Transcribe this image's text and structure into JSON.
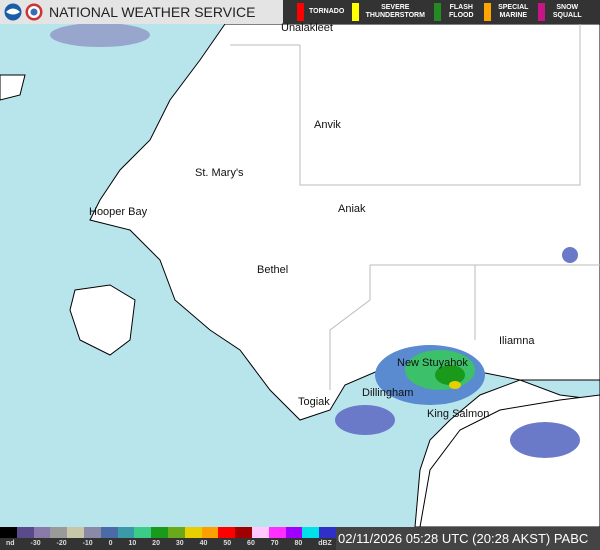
{
  "header": {
    "title": "NATIONAL WEATHER SERVICE",
    "warnings": [
      {
        "label": "TORNADO",
        "color": "#ff0000"
      },
      {
        "label": "SEVERE THUNDERSTORM",
        "color": "#ffff00"
      },
      {
        "label": "FLASH FLOOD",
        "color": "#228b22"
      },
      {
        "label": "SPECIAL MARINE",
        "color": "#ffa500"
      },
      {
        "label": "SNOW SQUALL",
        "color": "#c71585"
      }
    ]
  },
  "map": {
    "towns": [
      "Unalakleet",
      "Anvik",
      "St. Mary's",
      "Hooper Bay",
      "Aniak",
      "Bethel",
      "Iliamna",
      "New Stuyahok",
      "Dillingham",
      "Togiak",
      "King Salmon"
    ]
  },
  "legend": {
    "labels": [
      "nd",
      "-30",
      "-20",
      "-10",
      "0",
      "10",
      "20",
      "30",
      "40",
      "50",
      "60",
      "70",
      "80",
      "dBZ"
    ],
    "unit": "dBZ"
  },
  "timestamp": "02/11/2026 05:28 UTC (20:28 AKST)  PABC"
}
